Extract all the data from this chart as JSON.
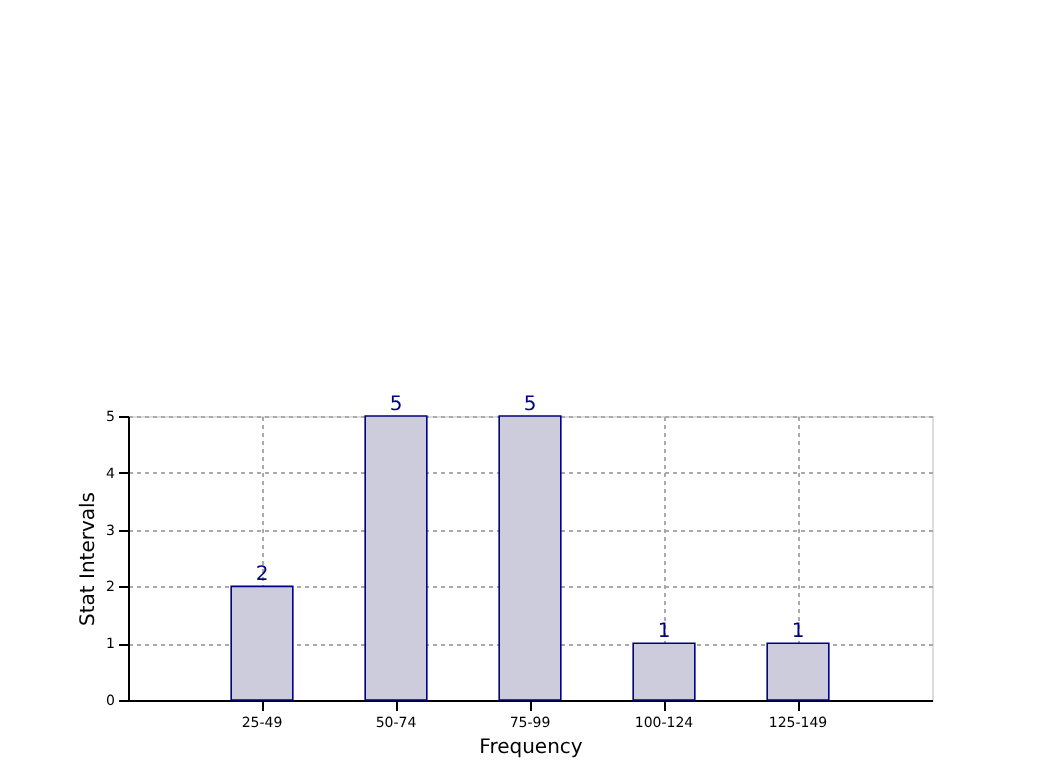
{
  "chart_data": {
    "type": "bar",
    "xlabel": "Frequency",
    "ylabel": "Stat Intervals",
    "categories": [
      "25-49",
      "50-74",
      "75-99",
      "100-124",
      "125-149"
    ],
    "values": [
      2,
      5,
      5,
      1,
      1
    ],
    "color": "#ccccdd",
    "ylim": [
      0,
      5
    ],
    "yticks": [
      0,
      1,
      2,
      3,
      4,
      5
    ],
    "grid": true,
    "data_labels": true
  }
}
